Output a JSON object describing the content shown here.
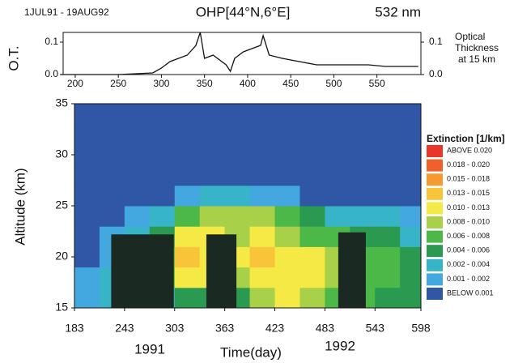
{
  "chart_data": [
    {
      "type": "line",
      "title": "OHP[44°N,6°E]",
      "subtitle": "1JUL91 - 19AUG92",
      "wavelength": "532 nm",
      "ylabel": "O.T.",
      "y2label": [
        "Optical",
        "Thickness",
        "at 15 km"
      ],
      "x": [
        183,
        250,
        290,
        300,
        310,
        320,
        330,
        340,
        345,
        350,
        360,
        375,
        380,
        385,
        395,
        405,
        415,
        418,
        425,
        440,
        460,
        480,
        500,
        540,
        560,
        598
      ],
      "series": [
        {
          "color": "#111111",
          "values": [
            0,
            0,
            0.005,
            0.02,
            0.04,
            0.05,
            0.06,
            0.09,
            0.13,
            0.05,
            0.06,
            0.03,
            0.01,
            0.05,
            0.07,
            0.08,
            0.09,
            0.12,
            0.06,
            0.05,
            0.04,
            0.03,
            0.03,
            0.03,
            0.025,
            0.025
          ]
        }
      ],
      "xlim": [
        186,
        601
      ],
      "ylim": [
        0,
        0.13
      ],
      "xticks": [
        200,
        250,
        300,
        350,
        400,
        450,
        500,
        550
      ],
      "yticks": [
        {
          "value": 0,
          "label": "0.0"
        },
        {
          "value": 0.1,
          "label": "0.1"
        }
      ],
      "y2ticks": [
        {
          "value": 0,
          "label": "0.0"
        },
        {
          "value": 0.1,
          "label": "0.1"
        }
      ]
    },
    {
      "type": "heatmap",
      "xlabel": "Time(day)",
      "ylabel": "Altitude (km)",
      "years": [
        "1991",
        "1992"
      ],
      "legend_title": "Extinction [1/km]",
      "xlim": [
        183,
        598
      ],
      "ylim": [
        15,
        35
      ],
      "xticks": [
        183,
        243,
        303,
        363,
        423,
        483,
        543,
        598
      ],
      "yticks": [
        15,
        20,
        25,
        30,
        35
      ],
      "x_edges": [
        183,
        213,
        243,
        273,
        303,
        333,
        363,
        393,
        423,
        453,
        483,
        513,
        543,
        573,
        598
      ],
      "y_edges": [
        15,
        17,
        19,
        21,
        23,
        25,
        27,
        29,
        31,
        33,
        35
      ],
      "values": [
        [
          0.0015,
          0.003,
          0.003,
          0.003,
          0.005,
          0.005,
          0.005,
          0.009,
          0.011,
          0.009,
          0.007,
          0.006,
          0.005,
          0.005
        ],
        [
          0.0015,
          0.003,
          0.003,
          0.006,
          0.011,
          0.012,
          0.009,
          0.011,
          0.012,
          0.01,
          0.008,
          0.007,
          0.006,
          0.005
        ],
        [
          0.0005,
          0.0015,
          0.003,
          0.007,
          0.014,
          0.012,
          0.011,
          0.014,
          0.012,
          0.01,
          0.008,
          0.007,
          0.006,
          0.005
        ],
        [
          0.0005,
          0.0015,
          0.003,
          0.005,
          0.011,
          0.011,
          0.009,
          0.011,
          0.009,
          0.007,
          0.006,
          0.005,
          0.004,
          0.003
        ],
        [
          0.0005,
          0.0005,
          0.0015,
          0.003,
          0.007,
          0.009,
          0.008,
          0.008,
          0.006,
          0.005,
          0.003,
          0.003,
          0.003,
          0.0015
        ],
        [
          0.0005,
          0.0005,
          0.0005,
          0.0005,
          0.0015,
          0.003,
          0.003,
          0.0015,
          0.0015,
          0.0005,
          0.0005,
          0.0005,
          0.0005,
          0.0005
        ],
        [
          0.0005,
          0.0005,
          0.0005,
          0.0005,
          0.0005,
          0.0005,
          0.0005,
          0.0005,
          0.0005,
          0.0005,
          0.0005,
          0.0005,
          0.0005,
          0.0005
        ],
        [
          0.0005,
          0.0005,
          0.0005,
          0.0005,
          0.0005,
          0.0005,
          0.0005,
          0.0005,
          0.0005,
          0.0005,
          0.0005,
          0.0005,
          0.0005,
          0.0005
        ],
        [
          0.0005,
          0.0005,
          0.0005,
          0.0005,
          0.0005,
          0.0005,
          0.0005,
          0.0005,
          0.0005,
          0.0005,
          0.0005,
          0.0005,
          0.0005,
          0.0005
        ],
        [
          0.0005,
          0.0005,
          0.0005,
          0.0005,
          0.0005,
          0.0005,
          0.0005,
          0.0005,
          0.0005,
          0.0005,
          0.0005,
          0.0005,
          0.0005,
          0.0005
        ]
      ],
      "gaps": [
        {
          "x": [
            227,
            302
          ],
          "top": 22.2
        },
        {
          "x": [
            341,
            377
          ],
          "top": 22.2
        },
        {
          "x": [
            499,
            532
          ],
          "top": 22.4
        }
      ],
      "gap_color": "#1a2a22",
      "classes": [
        {
          "label": "ABOVE 0.020",
          "min": 0.02,
          "max": null,
          "color": "#e8362a"
        },
        {
          "label": "0.018 - 0.020",
          "min": 0.018,
          "max": 0.02,
          "color": "#f0602a"
        },
        {
          "label": "0.015 - 0.018",
          "min": 0.015,
          "max": 0.018,
          "color": "#f59a30"
        },
        {
          "label": "0.013 - 0.015",
          "min": 0.013,
          "max": 0.015,
          "color": "#f8c53a"
        },
        {
          "label": "0.010 - 0.013",
          "min": 0.01,
          "max": 0.013,
          "color": "#f5ea45"
        },
        {
          "label": "0.008 - 0.010",
          "min": 0.008,
          "max": 0.01,
          "color": "#a8d048"
        },
        {
          "label": "0.006 - 0.008",
          "min": 0.006,
          "max": 0.008,
          "color": "#4cb848"
        },
        {
          "label": "0.004 - 0.006",
          "min": 0.004,
          "max": 0.006,
          "color": "#2a9a50"
        },
        {
          "label": "0.002 - 0.004",
          "min": 0.002,
          "max": 0.004,
          "color": "#38b4c8"
        },
        {
          "label": "0.001 - 0.002",
          "min": 0.001,
          "max": 0.002,
          "color": "#44a8e0"
        },
        {
          "label": "BELOW 0.001",
          "min": null,
          "max": 0.001,
          "color": "#2f57a6"
        }
      ]
    }
  ]
}
